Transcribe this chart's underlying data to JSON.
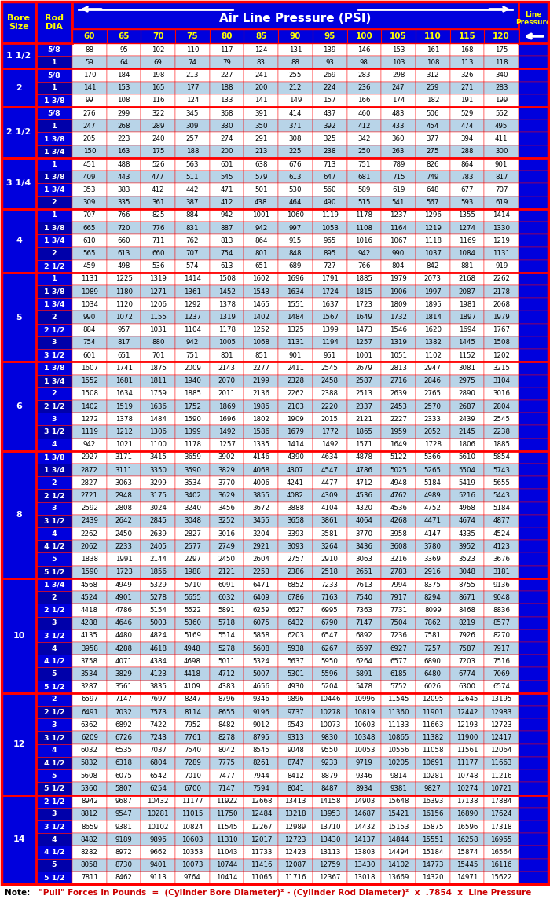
{
  "title": "Air Line Pressure (PSI)",
  "col_headers": [
    "60",
    "65",
    "70",
    "75",
    "80",
    "85",
    "90",
    "95",
    "100",
    "105",
    "110",
    "115",
    "120"
  ],
  "note_black": "Note:",
  "note_red": "  \"Pull\" Forces in Pounds  =  (Cylinder Bore Diameter)² - (Cylinder Rod Diameter)²  x  .7854  x  Line Pressure",
  "BLUE": "#0000DD",
  "DARK_BLUE": "#0000AA",
  "RED": "#FF0000",
  "YELLOW": "#FFFF00",
  "WHITE": "#FFFFFF",
  "LIGHT_BLUE": "#B8D4E8",
  "BLACK": "#000000",
  "rows": [
    {
      "bore": "1 1/2",
      "rod": "5/8",
      "values": [
        88,
        95,
        102,
        110,
        117,
        124,
        131,
        139,
        146,
        153,
        161,
        168,
        175
      ]
    },
    {
      "bore": "",
      "rod": "1",
      "values": [
        59,
        64,
        69,
        74,
        79,
        83,
        88,
        93,
        98,
        103,
        108,
        113,
        118
      ]
    },
    {
      "bore": "2",
      "rod": "5/8",
      "values": [
        170,
        184,
        198,
        213,
        227,
        241,
        255,
        269,
        283,
        298,
        312,
        326,
        340
      ]
    },
    {
      "bore": "",
      "rod": "1",
      "values": [
        141,
        153,
        165,
        177,
        188,
        200,
        212,
        224,
        236,
        247,
        259,
        271,
        283
      ]
    },
    {
      "bore": "",
      "rod": "1 3/8",
      "values": [
        99,
        108,
        116,
        124,
        133,
        141,
        149,
        157,
        166,
        174,
        182,
        191,
        199
      ]
    },
    {
      "bore": "2 1/2",
      "rod": "5/8",
      "values": [
        276,
        299,
        322,
        345,
        368,
        391,
        414,
        437,
        460,
        483,
        506,
        529,
        552
      ]
    },
    {
      "bore": "",
      "rod": "1",
      "values": [
        247,
        268,
        289,
        309,
        330,
        350,
        371,
        392,
        412,
        433,
        454,
        474,
        495
      ]
    },
    {
      "bore": "",
      "rod": "1 3/8",
      "values": [
        205,
        223,
        240,
        257,
        274,
        291,
        308,
        325,
        342,
        360,
        377,
        394,
        411
      ]
    },
    {
      "bore": "",
      "rod": "1 3/4",
      "values": [
        150,
        163,
        175,
        188,
        200,
        213,
        225,
        238,
        250,
        263,
        275,
        288,
        300
      ]
    },
    {
      "bore": "3 1/4",
      "rod": "1",
      "values": [
        451,
        488,
        526,
        563,
        601,
        638,
        676,
        713,
        751,
        789,
        826,
        864,
        901
      ]
    },
    {
      "bore": "",
      "rod": "1 3/8",
      "values": [
        409,
        443,
        477,
        511,
        545,
        579,
        613,
        647,
        681,
        715,
        749,
        783,
        817
      ]
    },
    {
      "bore": "",
      "rod": "1 3/4",
      "values": [
        353,
        383,
        412,
        442,
        471,
        501,
        530,
        560,
        589,
        619,
        648,
        677,
        707
      ]
    },
    {
      "bore": "",
      "rod": "2",
      "values": [
        309,
        335,
        361,
        387,
        412,
        438,
        464,
        490,
        515,
        541,
        567,
        593,
        619
      ]
    },
    {
      "bore": "4",
      "rod": "1",
      "values": [
        707,
        766,
        825,
        884,
        942,
        1001,
        1060,
        1119,
        1178,
        1237,
        1296,
        1355,
        1414
      ]
    },
    {
      "bore": "",
      "rod": "1 3/8",
      "values": [
        665,
        720,
        776,
        831,
        887,
        942,
        997,
        1053,
        1108,
        1164,
        1219,
        1274,
        1330
      ]
    },
    {
      "bore": "",
      "rod": "1 3/4",
      "values": [
        610,
        660,
        711,
        762,
        813,
        864,
        915,
        965,
        1016,
        1067,
        1118,
        1169,
        1219
      ]
    },
    {
      "bore": "",
      "rod": "2",
      "values": [
        565,
        613,
        660,
        707,
        754,
        801,
        848,
        895,
        942,
        990,
        1037,
        1084,
        1131
      ]
    },
    {
      "bore": "",
      "rod": "2 1/2",
      "values": [
        459,
        498,
        536,
        574,
        613,
        651,
        689,
        727,
        766,
        804,
        842,
        881,
        919
      ]
    },
    {
      "bore": "5",
      "rod": "1",
      "values": [
        1131,
        1225,
        1319,
        1414,
        1508,
        1602,
        1696,
        1791,
        1885,
        1979,
        2073,
        2168,
        2262
      ]
    },
    {
      "bore": "",
      "rod": "1 3/8",
      "values": [
        1089,
        1180,
        1271,
        1361,
        1452,
        1543,
        1634,
        1724,
        1815,
        1906,
        1997,
        2087,
        2178
      ]
    },
    {
      "bore": "",
      "rod": "1 3/4",
      "values": [
        1034,
        1120,
        1206,
        1292,
        1378,
        1465,
        1551,
        1637,
        1723,
        1809,
        1895,
        1981,
        2068
      ]
    },
    {
      "bore": "",
      "rod": "2",
      "values": [
        990,
        1072,
        1155,
        1237,
        1319,
        1402,
        1484,
        1567,
        1649,
        1732,
        1814,
        1897,
        1979
      ]
    },
    {
      "bore": "",
      "rod": "2 1/2",
      "values": [
        884,
        957,
        1031,
        1104,
        1178,
        1252,
        1325,
        1399,
        1473,
        1546,
        1620,
        1694,
        1767
      ]
    },
    {
      "bore": "",
      "rod": "3",
      "values": [
        754,
        817,
        880,
        942,
        1005,
        1068,
        1131,
        1194,
        1257,
        1319,
        1382,
        1445,
        1508
      ]
    },
    {
      "bore": "",
      "rod": "3 1/2",
      "values": [
        601,
        651,
        701,
        751,
        801,
        851,
        901,
        951,
        1001,
        1051,
        1102,
        1152,
        1202
      ]
    },
    {
      "bore": "6",
      "rod": "1 3/8",
      "values": [
        1607,
        1741,
        1875,
        2009,
        2143,
        2277,
        2411,
        2545,
        2679,
        2813,
        2947,
        3081,
        3215
      ]
    },
    {
      "bore": "",
      "rod": "1 3/4",
      "values": [
        1552,
        1681,
        1811,
        1940,
        2070,
        2199,
        2328,
        2458,
        2587,
        2716,
        2846,
        2975,
        3104
      ]
    },
    {
      "bore": "",
      "rod": "2",
      "values": [
        1508,
        1634,
        1759,
        1885,
        2011,
        2136,
        2262,
        2388,
        2513,
        2639,
        2765,
        2890,
        3016
      ]
    },
    {
      "bore": "",
      "rod": "2 1/2",
      "values": [
        1402,
        1519,
        1636,
        1752,
        1869,
        1986,
        2103,
        2220,
        2337,
        2453,
        2570,
        2687,
        2804
      ]
    },
    {
      "bore": "",
      "rod": "3",
      "values": [
        1272,
        1378,
        1484,
        1590,
        1696,
        1802,
        1909,
        2015,
        2121,
        2227,
        2333,
        2439,
        2545
      ]
    },
    {
      "bore": "",
      "rod": "3 1/2",
      "values": [
        1119,
        1212,
        1306,
        1399,
        1492,
        1586,
        1679,
        1772,
        1865,
        1959,
        2052,
        2145,
        2238
      ]
    },
    {
      "bore": "",
      "rod": "4",
      "values": [
        942,
        1021,
        1100,
        1178,
        1257,
        1335,
        1414,
        1492,
        1571,
        1649,
        1728,
        1806,
        1885
      ]
    },
    {
      "bore": "8",
      "rod": "1 3/8",
      "values": [
        2927,
        3171,
        3415,
        3659,
        3902,
        4146,
        4390,
        4634,
        4878,
        5122,
        5366,
        5610,
        5854
      ]
    },
    {
      "bore": "",
      "rod": "1 3/4",
      "values": [
        2872,
        3111,
        3350,
        3590,
        3829,
        4068,
        4307,
        4547,
        4786,
        5025,
        5265,
        5504,
        5743
      ]
    },
    {
      "bore": "",
      "rod": "2",
      "values": [
        2827,
        3063,
        3299,
        3534,
        3770,
        4006,
        4241,
        4477,
        4712,
        4948,
        5184,
        5419,
        5655
      ]
    },
    {
      "bore": "",
      "rod": "2 1/2",
      "values": [
        2721,
        2948,
        3175,
        3402,
        3629,
        3855,
        4082,
        4309,
        4536,
        4762,
        4989,
        5216,
        5443
      ]
    },
    {
      "bore": "",
      "rod": "3",
      "values": [
        2592,
        2808,
        3024,
        3240,
        3456,
        3672,
        3888,
        4104,
        4320,
        4536,
        4752,
        4968,
        5184
      ]
    },
    {
      "bore": "",
      "rod": "3 1/2",
      "values": [
        2439,
        2642,
        2845,
        3048,
        3252,
        3455,
        3658,
        3861,
        4064,
        4268,
        4471,
        4674,
        4877
      ]
    },
    {
      "bore": "",
      "rod": "4",
      "values": [
        2262,
        2450,
        2639,
        2827,
        3016,
        3204,
        3393,
        3581,
        3770,
        3958,
        4147,
        4335,
        4524
      ]
    },
    {
      "bore": "",
      "rod": "4 1/2",
      "values": [
        2062,
        2233,
        2405,
        2577,
        2749,
        2921,
        3093,
        3264,
        3436,
        3608,
        3780,
        3952,
        4123
      ]
    },
    {
      "bore": "",
      "rod": "5",
      "values": [
        1838,
        1991,
        2144,
        2297,
        2450,
        2604,
        2757,
        2910,
        3063,
        3216,
        3369,
        3523,
        3676
      ]
    },
    {
      "bore": "",
      "rod": "5 1/2",
      "values": [
        1590,
        1723,
        1856,
        1988,
        2121,
        2253,
        2386,
        2518,
        2651,
        2783,
        2916,
        3048,
        3181
      ]
    },
    {
      "bore": "10",
      "rod": "1 3/4",
      "values": [
        4568,
        4949,
        5329,
        5710,
        6091,
        6471,
        6852,
        7233,
        7613,
        7994,
        8375,
        8755,
        9136
      ]
    },
    {
      "bore": "",
      "rod": "2",
      "values": [
        4524,
        4901,
        5278,
        5655,
        6032,
        6409,
        6786,
        7163,
        7540,
        7917,
        8294,
        8671,
        9048
      ]
    },
    {
      "bore": "",
      "rod": "2 1/2",
      "values": [
        4418,
        4786,
        5154,
        5522,
        5891,
        6259,
        6627,
        6995,
        7363,
        7731,
        8099,
        8468,
        8836
      ]
    },
    {
      "bore": "",
      "rod": "3",
      "values": [
        4288,
        4646,
        5003,
        5360,
        5718,
        6075,
        6432,
        6790,
        7147,
        7504,
        7862,
        8219,
        8577
      ]
    },
    {
      "bore": "",
      "rod": "3 1/2",
      "values": [
        4135,
        4480,
        4824,
        5169,
        5514,
        5858,
        6203,
        6547,
        6892,
        7236,
        7581,
        7926,
        8270
      ]
    },
    {
      "bore": "",
      "rod": "4",
      "values": [
        3958,
        4288,
        4618,
        4948,
        5278,
        5608,
        5938,
        6267,
        6597,
        6927,
        7257,
        7587,
        7917
      ]
    },
    {
      "bore": "",
      "rod": "4 1/2",
      "values": [
        3758,
        4071,
        4384,
        4698,
        5011,
        5324,
        5637,
        5950,
        6264,
        6577,
        6890,
        7203,
        7516
      ]
    },
    {
      "bore": "",
      "rod": "5",
      "values": [
        3534,
        3829,
        4123,
        4418,
        4712,
        5007,
        5301,
        5596,
        5891,
        6185,
        6480,
        6774,
        7069
      ]
    },
    {
      "bore": "",
      "rod": "5 1/2",
      "values": [
        3287,
        3561,
        3835,
        4109,
        4383,
        4656,
        4930,
        5204,
        5478,
        5752,
        6026,
        6300,
        6574
      ]
    },
    {
      "bore": "12",
      "rod": "2",
      "values": [
        6597,
        7147,
        7697,
        8247,
        8796,
        9346,
        9896,
        10446,
        10996,
        11545,
        12095,
        12645,
        13195
      ]
    },
    {
      "bore": "",
      "rod": "2 1/2",
      "values": [
        6491,
        7032,
        7573,
        8114,
        8655,
        9196,
        9737,
        10278,
        10819,
        11360,
        11901,
        12442,
        12983
      ]
    },
    {
      "bore": "",
      "rod": "3",
      "values": [
        6362,
        6892,
        7422,
        7952,
        8482,
        9012,
        9543,
        10073,
        10603,
        11133,
        11663,
        12193,
        12723
      ]
    },
    {
      "bore": "",
      "rod": "3 1/2",
      "values": [
        6209,
        6726,
        7243,
        7761,
        8278,
        8795,
        9313,
        9830,
        10348,
        10865,
        11382,
        11900,
        12417
      ]
    },
    {
      "bore": "",
      "rod": "4",
      "values": [
        6032,
        6535,
        7037,
        7540,
        8042,
        8545,
        9048,
        9550,
        10053,
        10556,
        11058,
        11561,
        12064
      ]
    },
    {
      "bore": "",
      "rod": "4 1/2",
      "values": [
        5832,
        6318,
        6804,
        7289,
        7775,
        8261,
        8747,
        9233,
        9719,
        10205,
        10691,
        11177,
        11663
      ]
    },
    {
      "bore": "",
      "rod": "5",
      "values": [
        5608,
        6075,
        6542,
        7010,
        7477,
        7944,
        8412,
        8879,
        9346,
        9814,
        10281,
        10748,
        11216
      ]
    },
    {
      "bore": "",
      "rod": "5 1/2",
      "values": [
        5360,
        5807,
        6254,
        6700,
        7147,
        7594,
        8041,
        8487,
        8934,
        9381,
        9827,
        10274,
        10721
      ]
    },
    {
      "bore": "14",
      "rod": "2 1/2",
      "values": [
        8942,
        9687,
        10432,
        11177,
        11922,
        12668,
        13413,
        14158,
        14903,
        15648,
        16393,
        17138,
        17884
      ]
    },
    {
      "bore": "",
      "rod": "3",
      "values": [
        8812,
        9547,
        10281,
        11015,
        11750,
        12484,
        13218,
        13953,
        14687,
        15421,
        16156,
        16890,
        17624
      ]
    },
    {
      "bore": "",
      "rod": "3 1/2",
      "values": [
        8659,
        9381,
        10102,
        10824,
        11545,
        12267,
        12989,
        13710,
        14432,
        15153,
        15875,
        16596,
        17318
      ]
    },
    {
      "bore": "",
      "rod": "4",
      "values": [
        8482,
        9189,
        9896,
        10603,
        11310,
        12017,
        12723,
        13430,
        14137,
        14844,
        15551,
        16258,
        16965
      ]
    },
    {
      "bore": "",
      "rod": "4 1/2",
      "values": [
        8282,
        8972,
        9662,
        10353,
        11043,
        11733,
        12423,
        13113,
        13803,
        14494,
        15184,
        15874,
        16564
      ]
    },
    {
      "bore": "",
      "rod": "5",
      "values": [
        8058,
        8730,
        9401,
        10073,
        10744,
        11416,
        12087,
        12759,
        13430,
        14102,
        14773,
        15445,
        16116
      ]
    },
    {
      "bore": "",
      "rod": "5 1/2",
      "values": [
        7811,
        8462,
        9113,
        9764,
        10414,
        11065,
        11716,
        12367,
        13018,
        13669,
        14320,
        14971,
        15622
      ]
    }
  ]
}
